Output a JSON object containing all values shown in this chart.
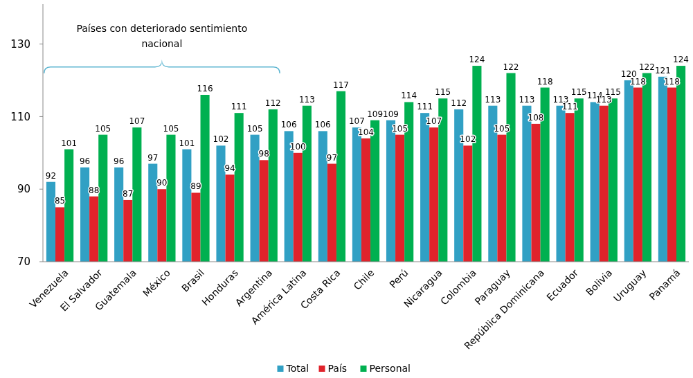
{
  "chart_data": {
    "type": "bar",
    "categories": [
      "Venezuela",
      "El Salvador",
      "Guatemala",
      "México",
      "Brasil",
      "Honduras",
      "Argentina",
      "América Latina",
      "Costa Rica",
      "Chile",
      "Perú",
      "Nicaragua",
      "Colombia",
      "Paraguay",
      "República Dominicana",
      "Ecuador",
      "Bolivia",
      "Uruguay",
      "Panamá"
    ],
    "series": [
      {
        "name": "Total",
        "color": "#31a0c4",
        "values": [
          92,
          96,
          96,
          97,
          101,
          102,
          105,
          106,
          106,
          107,
          109,
          111,
          112,
          113,
          113,
          113,
          114,
          120,
          121
        ]
      },
      {
        "name": "País",
        "color": "#e0232b",
        "values": [
          85,
          88,
          87,
          90,
          89,
          94,
          98,
          100,
          97,
          104,
          105,
          107,
          102,
          105,
          108,
          111,
          113,
          118,
          118
        ]
      },
      {
        "name": "Personal",
        "color": "#00b050",
        "values": [
          101,
          105,
          107,
          105,
          116,
          111,
          112,
          113,
          117,
          109,
          114,
          115,
          124,
          122,
          118,
          115,
          115,
          122,
          124
        ]
      }
    ],
    "ylim": [
      70,
      141
    ],
    "yticks": [
      70,
      90,
      110,
      130
    ],
    "grid": false,
    "legend": "bottom",
    "data_labels": true,
    "annotations": [
      "Países con deteriorado sentimiento nacional"
    ]
  }
}
